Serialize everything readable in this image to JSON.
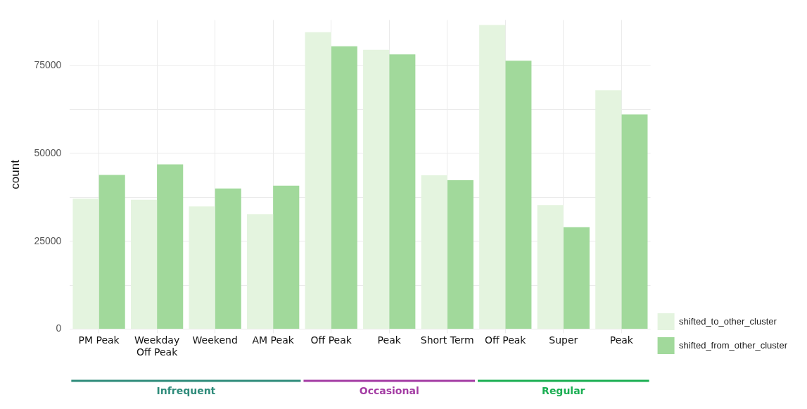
{
  "chart_data": {
    "type": "bar",
    "ylabel": "count",
    "categories": [
      "PM Peak",
      "Weekday\nOff Peak",
      "Weekend",
      "AM Peak",
      "Off Peak",
      "Peak",
      "Short Term",
      "Off Peak",
      "Super",
      "Peak"
    ],
    "series": [
      {
        "name": "shifted_to_other_cluster",
        "color": "#e4f4df",
        "values": [
          37100,
          36800,
          34900,
          32700,
          84500,
          79500,
          43800,
          86600,
          35300,
          68000
        ]
      },
      {
        "name": "shifted_from_other_cluster",
        "color": "#a1d99b",
        "values": [
          43900,
          46900,
          40000,
          40800,
          80500,
          78200,
          42400,
          76400,
          29000,
          61100
        ]
      }
    ],
    "ylim": [
      0,
      88000
    ],
    "yticks": [
      0,
      {
        "value": 12500,
        "label": null
      },
      25000,
      {
        "value": 37500,
        "label": null
      },
      50000,
      {
        "value": 62500,
        "label": null
      },
      75000
    ],
    "grid": true,
    "legend": "right",
    "annotations": [
      "Infrequent",
      "Occasional",
      "Regular"
    ]
  }
}
